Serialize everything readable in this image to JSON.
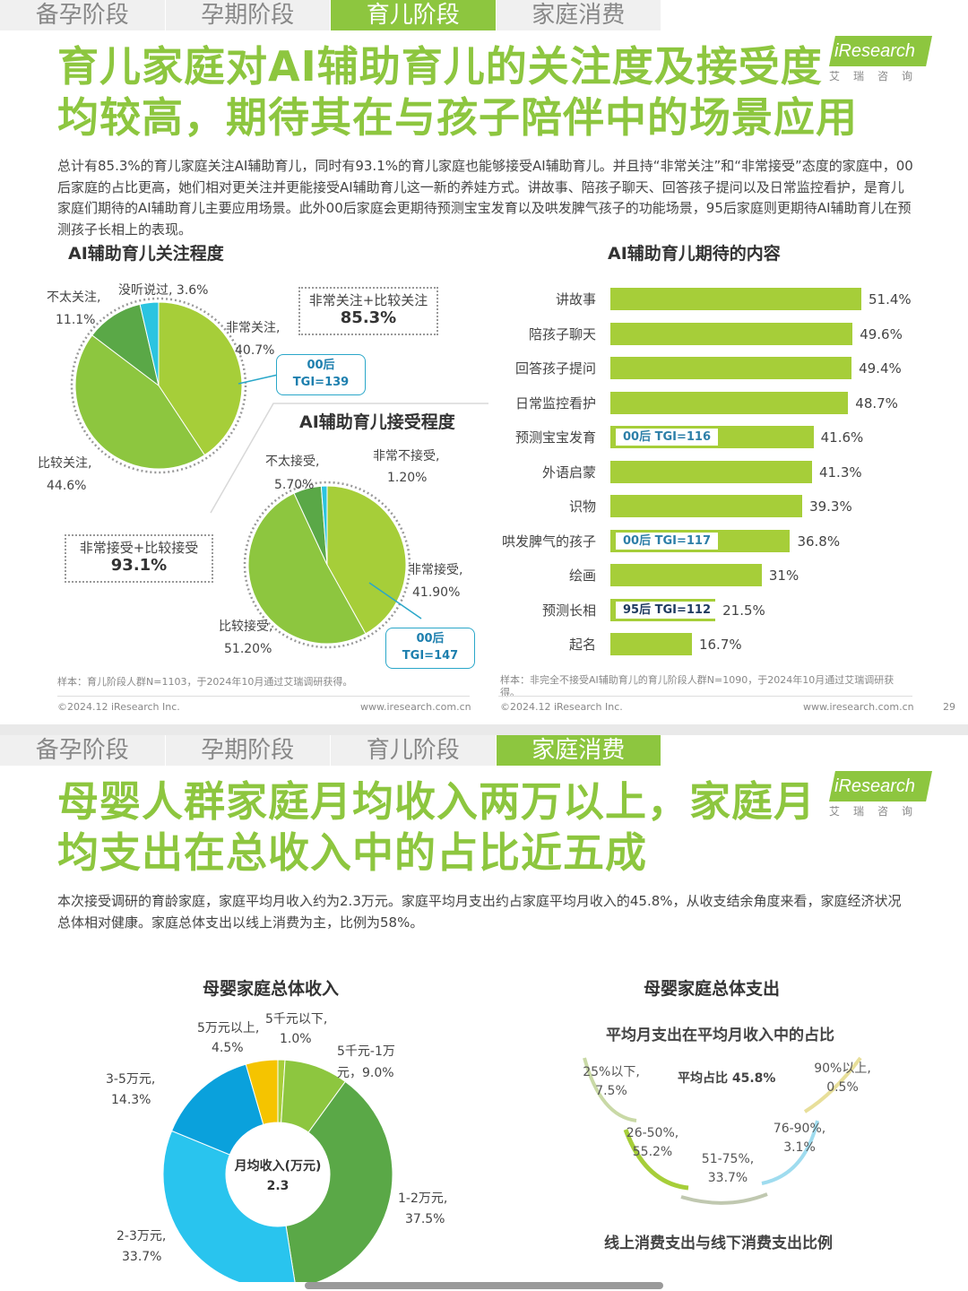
{
  "tabs": [
    "备孕阶段",
    "孕期阶段",
    "育儿阶段",
    "家庭消费"
  ],
  "brand": {
    "name": "iResearch",
    "cn": "艾瑞咨询"
  },
  "colors": {
    "accent": "#8dc63f",
    "tgi_border": "#2aa7c9"
  },
  "page1": {
    "active_tab": 2,
    "title_line1": "育儿家庭对AI辅助育儿的关注度及接受度",
    "title_line2": "均较高，期待其在与孩子陪伴中的场景应用",
    "description": "总计有85.3%的育儿家庭关注AI辅助育儿，同时有93.1%的育儿家庭也能够接受AI辅助育儿。并且持“非常关注”和“非常接受”态度的家庭中，00后家庭的占比更高，她们相对更关注并更能接受AI辅助育儿这一新的养娃方式。讲故事、陪孩子聊天、回答孩子提问以及日常监控看护，是育儿家庭们期待的AI辅助育儿主要应用场景。此外00后家庭会更期待预测宝宝发育以及哄发脾气孩子的功能场景，95后家庭则更期待AI辅助育儿在预测孩子长相上的表现。",
    "attention_title": "AI辅助育儿关注程度",
    "acceptance_title": "AI辅助育儿接受程度",
    "expect_title": "AI辅助育儿期待的内容",
    "attention_summary_label": "非常关注+比较关注",
    "attention_summary_value": "85.3%",
    "acceptance_summary_label": "非常接受+比较接受",
    "acceptance_summary_value": "93.1%",
    "attention_tgi_line1": "00后",
    "attention_tgi_line2": "TGI=139",
    "acceptance_tgi_line1": "00后",
    "acceptance_tgi_line2": "TGI=147",
    "sample_left": "样本：育儿阶段人群N=1103，于2024年10月通过艾瑞调研获得。",
    "sample_right": "样本：非完全不接受AI辅助育儿的育儿阶段人群N=1090，于2024年10月通过艾瑞调研获得。",
    "copyright": "©2024.12 iResearch Inc.",
    "website": "www.iresearch.com.cn",
    "page_number": "29"
  },
  "page2": {
    "active_tab": 3,
    "title_line1": "母婴人群家庭月均收入两万以上，家庭月",
    "title_line2": "均支出在总收入中的占比近五成",
    "description": "本次接受调研的育龄家庭，家庭平均月收入约为2.3万元。家庭平均月支出约占家庭平均月收入的45.8%，从收支结余角度来看，家庭经济状况总体相对健康。家庭总体支出以线上消费为主，比例为58%。",
    "income_title": "母婴家庭总体收入",
    "expense_title": "母婴家庭总体支出",
    "expense_subtitle": "平均月支出在平均月收入中的占比",
    "expense_avg": "平均占比 45.8%",
    "income_center_label": "月均收入(万元)",
    "income_center_value": "2.3",
    "online_offline_title": "线上消费支出与线下消费支出比例"
  },
  "chart_data": [
    {
      "type": "pie",
      "title": "AI辅助育儿关注程度",
      "slices": [
        {
          "label": "非常关注",
          "value": 40.7,
          "display": "40.7%",
          "color": "#a6ce39"
        },
        {
          "label": "比较关注",
          "value": 44.6,
          "display": "44.6%",
          "color": "#8dc63f"
        },
        {
          "label": "不太关注",
          "value": 11.1,
          "display": "11.1%",
          "color": "#5aa847"
        },
        {
          "label": "没听说过",
          "value": 3.6,
          "display": "3.6%",
          "color": "#2bc4e0"
        }
      ]
    },
    {
      "type": "pie",
      "title": "AI辅助育儿接受程度",
      "slices": [
        {
          "label": "非常接受",
          "value": 41.9,
          "display": "41.90%",
          "color": "#a6ce39"
        },
        {
          "label": "比较接受",
          "value": 51.2,
          "display": "51.20%",
          "color": "#8dc63f"
        },
        {
          "label": "不太接受",
          "value": 5.7,
          "display": "5.70%",
          "color": "#5aa847"
        },
        {
          "label": "非常不接受",
          "value": 1.2,
          "display": "1.20%",
          "color": "#2bc4e0"
        }
      ]
    },
    {
      "type": "bar",
      "title": "AI辅助育儿期待的内容",
      "categories": [
        "讲故事",
        "陪孩子聊天",
        "回答孩子提问",
        "日常监控看护",
        "预测宝宝发育",
        "外语启蒙",
        "识物",
        "哄发脾气的孩子",
        "绘画",
        "预测长相",
        "起名"
      ],
      "values": [
        51.4,
        49.6,
        49.4,
        48.7,
        41.6,
        41.3,
        39.3,
        36.8,
        31,
        21.5,
        16.7
      ],
      "labels": [
        "51.4%",
        "49.6%",
        "49.4%",
        "48.7%",
        "41.6%",
        "41.3%",
        "39.3%",
        "36.8%",
        "31%",
        "21.5%",
        "16.7%"
      ],
      "tgi": [
        "",
        "",
        "",
        "",
        "00后 TGI=116",
        "",
        "",
        "00后 TGI=117",
        "",
        "95后 TGI=112",
        ""
      ]
    },
    {
      "type": "pie",
      "title": "母婴家庭总体收入",
      "slices": [
        {
          "label": "5千元以下,",
          "value": 1.0,
          "display": "1.0%",
          "color": "#a6ce39"
        },
        {
          "label": "5千元-1万元，",
          "value": 9.0,
          "display": "9.0%",
          "color": "#8dc63f"
        },
        {
          "label": "1-2万元,",
          "value": 37.5,
          "display": "37.5%",
          "color": "#5aa847"
        },
        {
          "label": "2-3万元,",
          "value": 33.7,
          "display": "33.7%",
          "color": "#29c4ee"
        },
        {
          "label": "3-5万元,",
          "value": 14.3,
          "display": "14.3%",
          "color": "#0aa1dc"
        },
        {
          "label": "5万元以上,",
          "value": 4.5,
          "display": "4.5%",
          "color": "#f5c400"
        }
      ]
    },
    {
      "type": "bar",
      "title": "平均月支出在平均月收入中的占比",
      "categories": [
        "25%以下,",
        "26-50%,",
        "51-75%,",
        "76-90%,",
        "90%以上,"
      ],
      "values": [
        7.5,
        55.2,
        33.7,
        3.1,
        0.5
      ],
      "labels": [
        "7.5%",
        "55.2%",
        "33.7%",
        "3.1%",
        "0.5%"
      ]
    }
  ]
}
